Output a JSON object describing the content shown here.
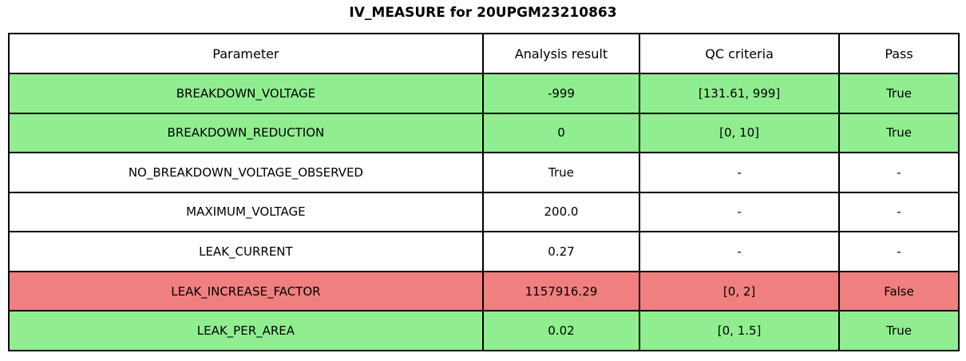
{
  "title": "IV_MEASURE for 20UPGM23210863",
  "colors": {
    "pass_green": "#90ee90",
    "fail_red": "#f08080",
    "neutral_white": "#ffffff",
    "border_black": "#000000"
  },
  "chart_data": {
    "type": "table",
    "title": "IV_MEASURE for 20UPGM23210863",
    "columns": [
      "Parameter",
      "Analysis result",
      "QC criteria",
      "Pass"
    ],
    "rows": [
      {
        "parameter": "BREAKDOWN_VOLTAGE",
        "analysis_result": "-999",
        "qc_criteria": "[131.61, 999]",
        "pass": "True",
        "status": "pass"
      },
      {
        "parameter": "BREAKDOWN_REDUCTION",
        "analysis_result": "0",
        "qc_criteria": "[0, 10]",
        "pass": "True",
        "status": "pass"
      },
      {
        "parameter": "NO_BREAKDOWN_VOLTAGE_OBSERVED",
        "analysis_result": "True",
        "qc_criteria": "-",
        "pass": "-",
        "status": "neutral"
      },
      {
        "parameter": "MAXIMUM_VOLTAGE",
        "analysis_result": "200.0",
        "qc_criteria": "-",
        "pass": "-",
        "status": "neutral"
      },
      {
        "parameter": "LEAK_CURRENT",
        "analysis_result": "0.27",
        "qc_criteria": "-",
        "pass": "-",
        "status": "neutral"
      },
      {
        "parameter": "LEAK_INCREASE_FACTOR",
        "analysis_result": "1157916.29",
        "qc_criteria": "[0, 2]",
        "pass": "False",
        "status": "fail"
      },
      {
        "parameter": "LEAK_PER_AREA",
        "analysis_result": "0.02",
        "qc_criteria": "[0, 1.5]",
        "pass": "True",
        "status": "pass"
      }
    ]
  }
}
